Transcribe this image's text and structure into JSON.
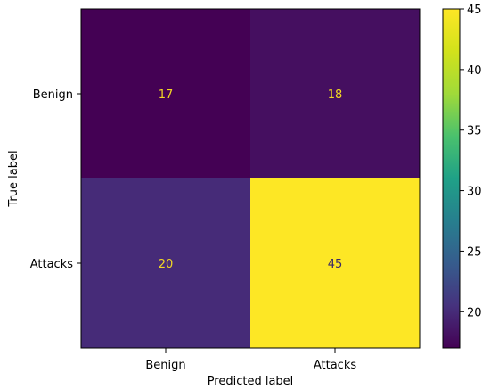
{
  "chart_data": {
    "type": "heatmap",
    "title": "",
    "xlabel": "Predicted label",
    "ylabel": "True label",
    "x_categories": [
      "Benign",
      "Attacks"
    ],
    "y_categories": [
      "Benign",
      "Attacks"
    ],
    "values": [
      [
        17,
        18
      ],
      [
        20,
        45
      ]
    ],
    "colormap": "viridis",
    "text_colors": {
      "on_dark": "#f2d824",
      "on_bright": "#3b2a68"
    },
    "colorbar": {
      "range": [
        17,
        45
      ],
      "ticks": [
        20,
        25,
        30,
        35,
        40,
        45
      ],
      "tick_labels": [
        "20",
        "25",
        "30",
        "35",
        "40",
        "45"
      ]
    }
  }
}
